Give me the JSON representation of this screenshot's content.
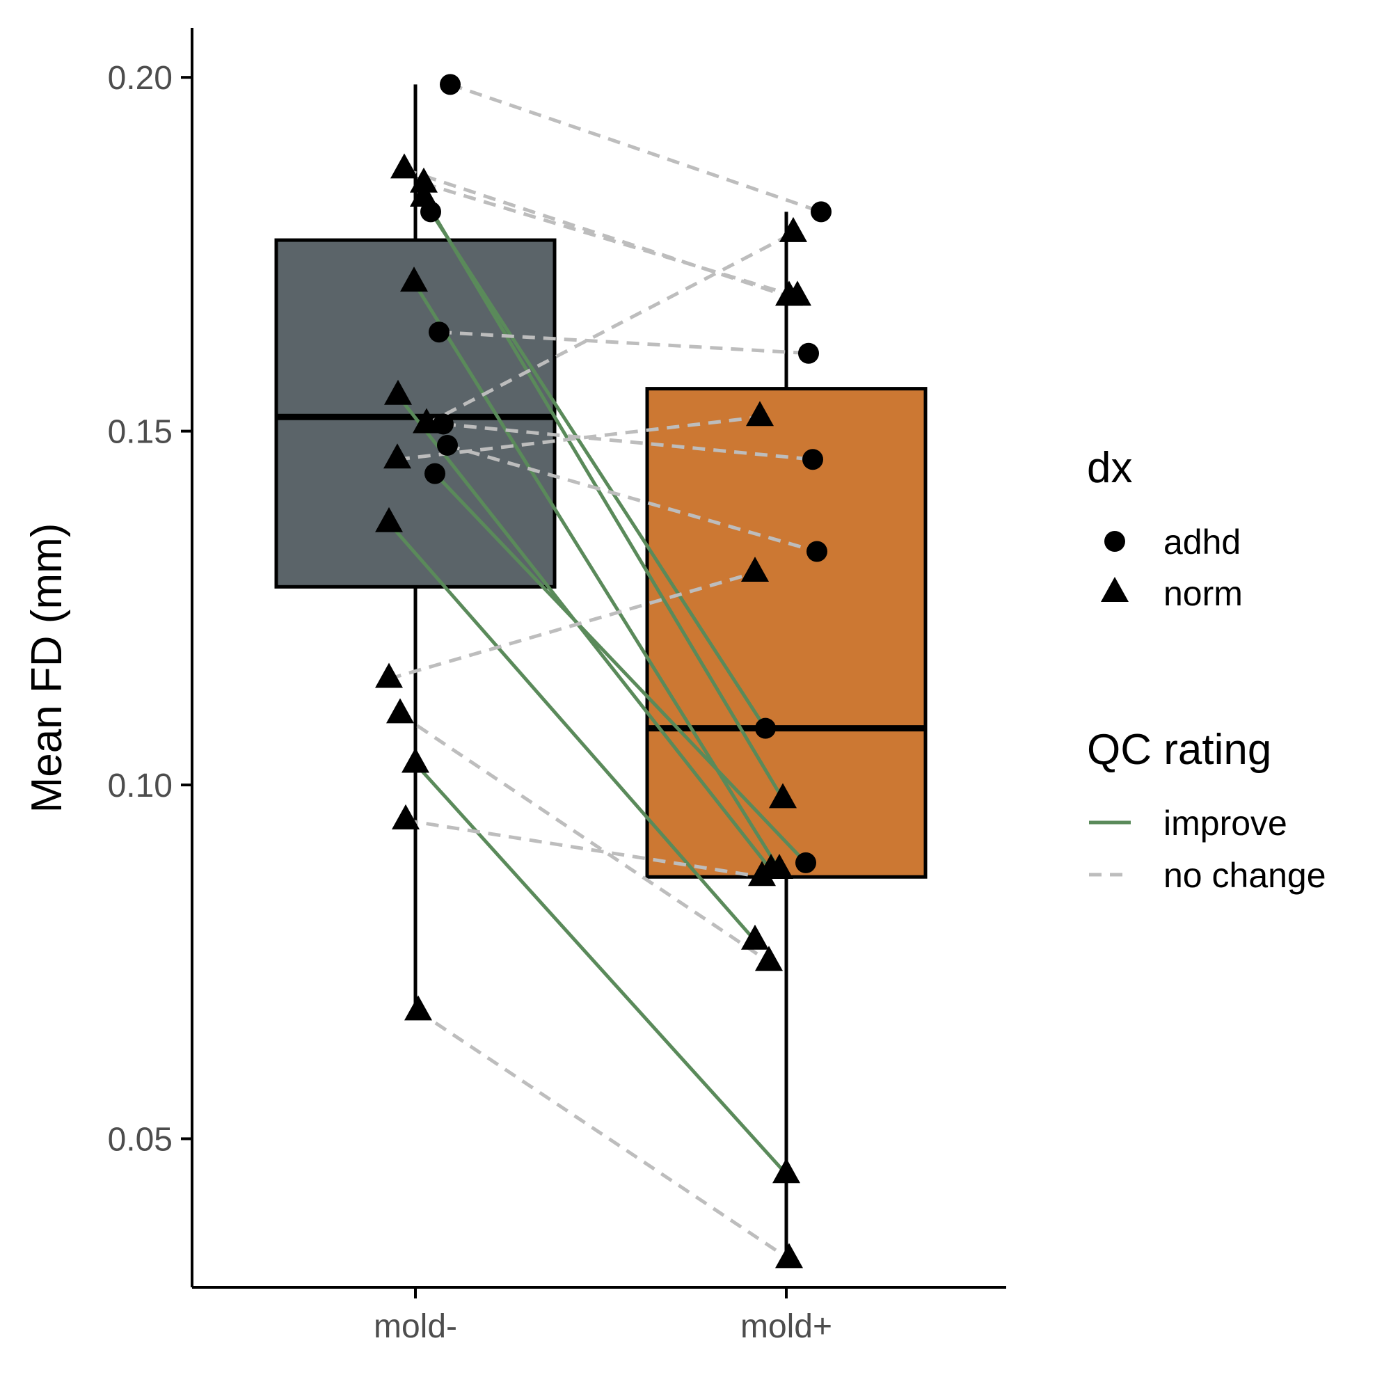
{
  "chart_data": {
    "type": "box",
    "ylabel": "Mean FD (mm)",
    "xlabel": "",
    "ylim": [
      0.029,
      0.207
    ],
    "yticks": [
      {
        "value": 0.05,
        "label": "0.05"
      },
      {
        "value": 0.1,
        "label": "0.10"
      },
      {
        "value": 0.15,
        "label": "0.15"
      },
      {
        "value": 0.2,
        "label": "0.20"
      }
    ],
    "categories": [
      "mold-",
      "mold+"
    ],
    "boxes": [
      {
        "category": "mold-",
        "lower_whisker": 0.068,
        "q1": 0.128,
        "median": 0.152,
        "q3": 0.177,
        "upper_whisker": 0.199,
        "fill": "#5b6469"
      },
      {
        "category": "mold+",
        "lower_whisker": 0.033,
        "q1": 0.087,
        "median": 0.108,
        "q3": 0.156,
        "upper_whisker": 0.181,
        "fill": "#cc7833"
      }
    ],
    "pairs": [
      {
        "dx": "adhd",
        "qc": "no change",
        "mold_minus": 0.199,
        "mold_plus": 0.181
      },
      {
        "dx": "norm",
        "qc": "no change",
        "mold_minus": 0.187,
        "mold_plus": 0.169
      },
      {
        "dx": "norm",
        "qc": "no change",
        "mold_minus": 0.185,
        "mold_plus": 0.169
      },
      {
        "dx": "adhd",
        "qc": "improve",
        "mold_minus": 0.181,
        "mold_plus": 0.108
      },
      {
        "dx": "norm",
        "qc": "improve",
        "mold_minus": 0.183,
        "mold_plus": 0.098
      },
      {
        "dx": "norm",
        "qc": "improve",
        "mold_minus": 0.171,
        "mold_plus": 0.088
      },
      {
        "dx": "adhd",
        "qc": "no change",
        "mold_minus": 0.164,
        "mold_plus": 0.161
      },
      {
        "dx": "norm",
        "qc": "improve",
        "mold_minus": 0.155,
        "mold_plus": 0.088
      },
      {
        "dx": "norm",
        "qc": "no change",
        "mold_minus": 0.151,
        "mold_plus": 0.178
      },
      {
        "dx": "adhd",
        "qc": "no change",
        "mold_minus": 0.151,
        "mold_plus": 0.146
      },
      {
        "dx": "adhd",
        "qc": "no change",
        "mold_minus": 0.148,
        "mold_plus": 0.133
      },
      {
        "dx": "norm",
        "qc": "no change",
        "mold_minus": 0.146,
        "mold_plus": 0.152
      },
      {
        "dx": "adhd",
        "qc": "improve",
        "mold_minus": 0.144,
        "mold_plus": 0.089
      },
      {
        "dx": "norm",
        "qc": "improve",
        "mold_minus": 0.137,
        "mold_plus": 0.078
      },
      {
        "dx": "norm",
        "qc": "no change",
        "mold_minus": 0.115,
        "mold_plus": 0.13
      },
      {
        "dx": "norm",
        "qc": "no change",
        "mold_minus": 0.11,
        "mold_plus": 0.075
      },
      {
        "dx": "norm",
        "qc": "improve",
        "mold_minus": 0.103,
        "mold_plus": 0.045
      },
      {
        "dx": "norm",
        "qc": "no change",
        "mold_minus": 0.095,
        "mold_plus": 0.087
      },
      {
        "dx": "norm",
        "qc": "no change",
        "mold_minus": 0.068,
        "mold_plus": 0.033
      }
    ],
    "legends": [
      {
        "title": "dx",
        "items": [
          {
            "label": "adhd",
            "shape": "circle"
          },
          {
            "label": "norm",
            "shape": "triangle"
          }
        ]
      },
      {
        "title": "QC rating",
        "items": [
          {
            "label": "improve",
            "line": "solid",
            "color": "#5a8a5a"
          },
          {
            "label": "no change",
            "line": "dashed",
            "color": "#bdbdbd"
          }
        ]
      }
    ],
    "legend_position": "right",
    "grid": false
  }
}
